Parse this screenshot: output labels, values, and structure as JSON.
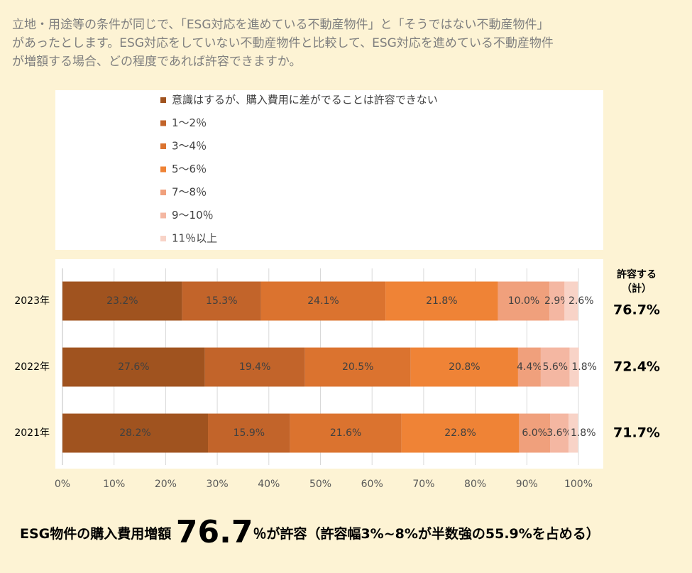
{
  "question": [
    "立地・用途等の条件が同じで、「ESG対応を進めている不動産物件」と「そうではない不動産物件」",
    "があったとします。ESG対応をしていない不動産物件と比較して、ESG対応を進めている不動産物件",
    "が増額する場合、どの程度であれば許容できますか。"
  ],
  "chart_data": {
    "type": "stacked_barh",
    "categories": [
      "2023年",
      "2022年",
      "2021年"
    ],
    "series": [
      {
        "name": "意識はするが、購入費用に差がでることは許容できない",
        "color": "#a0531f",
        "values": [
          23.2,
          27.6,
          28.2
        ],
        "value_labels": [
          "23.2%",
          "27.6%",
          "28.2%"
        ]
      },
      {
        "name": "1～2％",
        "color": "#c2642a",
        "values": [
          15.3,
          19.4,
          15.9
        ],
        "value_labels": [
          "15.3%",
          "19.4%",
          "15.9%"
        ]
      },
      {
        "name": "3～4％",
        "color": "#db732f",
        "values": [
          24.1,
          20.5,
          21.6
        ],
        "value_labels": [
          "24.1%",
          "20.5%",
          "21.6%"
        ]
      },
      {
        "name": "5～6％",
        "color": "#ef8336",
        "values": [
          21.8,
          20.8,
          22.8
        ],
        "value_labels": [
          "21.8%",
          "20.8%",
          "22.8%"
        ]
      },
      {
        "name": "7～8％",
        "color": "#f0a07c",
        "values": [
          10.0,
          4.4,
          6.0
        ],
        "value_labels": [
          "10.0%",
          "4.4%",
          "6.0%"
        ]
      },
      {
        "name": "9～10％",
        "color": "#f4b7a2",
        "values": [
          2.9,
          5.6,
          3.6
        ],
        "value_labels": [
          "2.9%",
          "5.6%",
          "3.6%"
        ]
      },
      {
        "name": "11％以上",
        "color": "#f8d3c7",
        "values": [
          2.6,
          1.8,
          1.8
        ],
        "value_labels": [
          "2.6%",
          "1.8%",
          "1.8%"
        ]
      }
    ],
    "xlim": [
      0,
      100
    ],
    "xticks": [
      {
        "value": 0,
        "label": "0%"
      },
      {
        "value": 10,
        "label": "10%"
      },
      {
        "value": 20,
        "label": "20%"
      },
      {
        "value": 30,
        "label": "30%"
      },
      {
        "value": 40,
        "label": "40%"
      },
      {
        "value": 50,
        "label": "50%"
      },
      {
        "value": 60,
        "label": "60%"
      },
      {
        "value": 70,
        "label": "70%"
      },
      {
        "value": 80,
        "label": "80%"
      },
      {
        "value": 90,
        "label": "90%"
      },
      {
        "value": 100,
        "label": "100%"
      }
    ],
    "grid": true,
    "legend": "top"
  },
  "totals": {
    "header": [
      "許容する",
      "（計）"
    ],
    "labels": [
      "76.7%",
      "72.4%",
      "71.7%"
    ]
  },
  "footer": {
    "prefix": "ESG物件の購入費用増額 ",
    "highlight": "76.7",
    "suffix": "％が許容（許容幅3%~8%が半数強の55.9%を占める）"
  }
}
